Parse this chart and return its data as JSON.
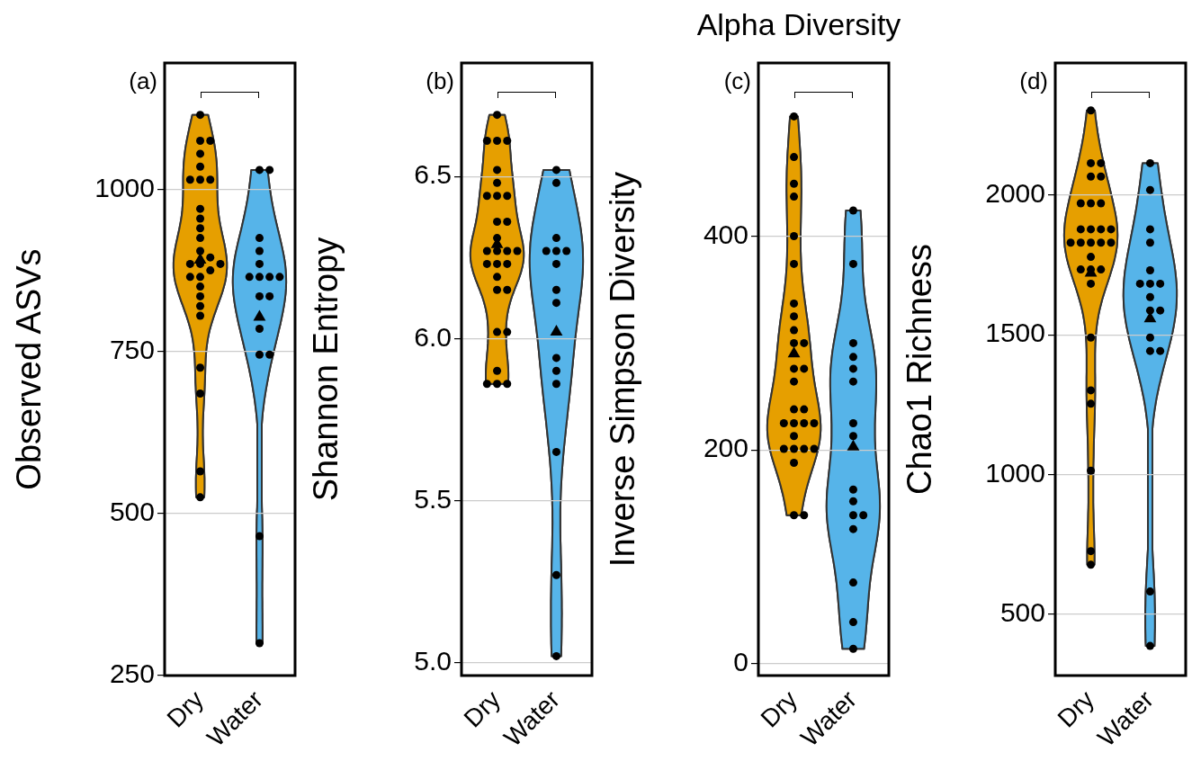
{
  "chart_data": [
    {
      "type": "scatter",
      "ylabel": "Observed ASVs",
      "categories": [
        "Dry",
        "Water"
      ],
      "colors": [
        "#e69f00",
        "#56b4e9"
      ],
      "ylim": [
        250,
        1195
      ],
      "yticks": [
        250,
        500,
        750,
        1000
      ],
      "grid": "y",
      "annotations": [
        "(a)"
      ],
      "series": [
        {
          "type": "scatter",
          "marker": "circle",
          "color": "#000000",
          "x": [
            "Dry",
            "Dry",
            "Dry",
            "Dry",
            "Dry",
            "Dry",
            "Dry",
            "Dry",
            "Dry",
            "Dry",
            "Dry",
            "Dry",
            "Dry",
            "Dry",
            "Dry",
            "Dry",
            "Dry",
            "Dry",
            "Dry",
            "Dry",
            "Dry",
            "Dry",
            "Dry",
            "Dry",
            "Dry",
            "Dry",
            "Dry",
            "Dry",
            "Water",
            "Water",
            "Water",
            "Water",
            "Water",
            "Water",
            "Water",
            "Water",
            "Water",
            "Water",
            "Water",
            "Water",
            "Water",
            "Water",
            "Water",
            "Water"
          ],
          "values": [
            1115,
            1075,
            1075,
            1055,
            1035,
            1015,
            1015,
            1015,
            970,
            955,
            940,
            925,
            905,
            895,
            885,
            885,
            885,
            875,
            865,
            865,
            850,
            835,
            820,
            805,
            725,
            685,
            565,
            525,
            1030,
            1030,
            925,
            905,
            885,
            865,
            865,
            865,
            865,
            835,
            835,
            785,
            745,
            745,
            465,
            300
          ]
        },
        {
          "type": "scatter",
          "marker": "triangle",
          "color": "#000000",
          "x": [
            "Dry",
            "Water"
          ],
          "values": [
            891,
            803
          ]
        }
      ]
    },
    {
      "type": "scatter",
      "ylabel": "Shannon Entropy",
      "categories": [
        "Dry",
        "Water"
      ],
      "colors": [
        "#e69f00",
        "#56b4e9"
      ],
      "ylim": [
        4.96,
        6.85
      ],
      "yticks": [
        {
          "value": 5,
          "label": "5.0"
        },
        5.5,
        {
          "value": 6,
          "label": "6.0"
        },
        6.5
      ],
      "grid": "y",
      "annotations": [
        "(b)"
      ],
      "series": [
        {
          "type": "scatter",
          "marker": "circle",
          "color": "#000000",
          "x": [
            "Dry",
            "Dry",
            "Dry",
            "Dry",
            "Dry",
            "Dry",
            "Dry",
            "Dry",
            "Dry",
            "Dry",
            "Dry",
            "Dry",
            "Dry",
            "Dry",
            "Dry",
            "Dry",
            "Dry",
            "Dry",
            "Dry",
            "Dry",
            "Dry",
            "Dry",
            "Dry",
            "Dry",
            "Dry",
            "Dry",
            "Dry",
            "Dry",
            "Water",
            "Water",
            "Water",
            "Water",
            "Water",
            "Water",
            "Water",
            "Water",
            "Water",
            "Water",
            "Water",
            "Water",
            "Water",
            "Water",
            "Water"
          ],
          "values": [
            6.69,
            6.61,
            6.61,
            6.61,
            6.52,
            6.48,
            6.44,
            6.44,
            6.44,
            6.36,
            6.36,
            6.31,
            6.27,
            6.27,
            6.27,
            6.27,
            6.23,
            6.23,
            6.23,
            6.19,
            6.15,
            6.15,
            6.02,
            6.02,
            5.9,
            5.86,
            5.86,
            5.86,
            6.52,
            6.48,
            6.31,
            6.27,
            6.27,
            6.27,
            6.23,
            6.15,
            6.11,
            5.94,
            5.9,
            5.86,
            5.65,
            5.27,
            5.02
          ]
        },
        {
          "type": "scatter",
          "marker": "triangle",
          "color": "#000000",
          "x": [
            "Dry",
            "Water"
          ],
          "values": [
            6.29,
            6.02
          ]
        }
      ]
    },
    {
      "type": "scatter",
      "title": "Alpha Diversity",
      "ylabel": "Inverse Simpson Diversity",
      "categories": [
        "Dry",
        "Water"
      ],
      "colors": [
        "#e69f00",
        "#56b4e9"
      ],
      "ylim": [
        -11,
        562
      ],
      "yticks": [
        0,
        200,
        400
      ],
      "grid": "y",
      "annotations": [
        "(c)"
      ],
      "series": [
        {
          "type": "scatter",
          "marker": "circle",
          "color": "#000000",
          "x": [
            "Dry",
            "Dry",
            "Dry",
            "Dry",
            "Dry",
            "Dry",
            "Dry",
            "Dry",
            "Dry",
            "Dry",
            "Dry",
            "Dry",
            "Dry",
            "Dry",
            "Dry",
            "Dry",
            "Dry",
            "Dry",
            "Dry",
            "Dry",
            "Dry",
            "Dry",
            "Dry",
            "Dry",
            "Dry",
            "Dry",
            "Dry",
            "Dry",
            "Water",
            "Water",
            "Water",
            "Water",
            "Water",
            "Water",
            "Water",
            "Water",
            "Water",
            "Water",
            "Water",
            "Water",
            "Water",
            "Water",
            "Water",
            "Water"
          ],
          "values": [
            512,
            474,
            449,
            437,
            400,
            374,
            337,
            325,
            312,
            300,
            300,
            276,
            276,
            264,
            238,
            238,
            225,
            225,
            225,
            225,
            213,
            201,
            201,
            201,
            201,
            188,
            139,
            139,
            424,
            374,
            300,
            287,
            276,
            264,
            225,
            213,
            163,
            152,
            139,
            139,
            126,
            76,
            39,
            14
          ]
        },
        {
          "type": "scatter",
          "marker": "triangle",
          "color": "#000000",
          "x": [
            "Dry",
            "Water"
          ],
          "values": [
            290,
            203
          ]
        }
      ]
    },
    {
      "type": "scatter",
      "ylabel": "Chao1 Richness",
      "categories": [
        "Dry",
        "Water"
      ],
      "colors": [
        "#e69f00",
        "#56b4e9"
      ],
      "ylim": [
        279,
        2474
      ],
      "yticks": [
        500,
        1000,
        1500,
        2000
      ],
      "grid": "y",
      "annotations": [
        "(d)"
      ],
      "series": [
        {
          "type": "scatter",
          "marker": "circle",
          "color": "#000000",
          "x": [
            "Dry",
            "Dry",
            "Dry",
            "Dry",
            "Dry",
            "Dry",
            "Dry",
            "Dry",
            "Dry",
            "Dry",
            "Dry",
            "Dry",
            "Dry",
            "Dry",
            "Dry",
            "Dry",
            "Dry",
            "Dry",
            "Dry",
            "Dry",
            "Dry",
            "Dry",
            "Dry",
            "Dry",
            "Dry",
            "Dry",
            "Dry",
            "Dry",
            "Water",
            "Water",
            "Water",
            "Water",
            "Water",
            "Water",
            "Water",
            "Water",
            "Water",
            "Water",
            "Water",
            "Water",
            "Water",
            "Water",
            "Water",
            "Water"
          ],
          "values": [
            2304,
            2115,
            2115,
            2067,
            2067,
            1971,
            1971,
            1971,
            1878,
            1878,
            1878,
            1878,
            1830,
            1830,
            1830,
            1830,
            1779,
            1734,
            1734,
            1683,
            1490,
            1301,
            1253,
            1013,
            725,
            676,
            1734,
            1830,
            2115,
            2019,
            1878,
            1830,
            1731,
            1683,
            1683,
            1683,
            1635,
            1587,
            1587,
            1490,
            1442,
            1442,
            580,
            385
          ]
        },
        {
          "type": "scatter",
          "marker": "triangle",
          "color": "#000000",
          "x": [
            "Dry",
            "Water"
          ],
          "values": [
            1721,
            1558
          ]
        }
      ]
    }
  ]
}
